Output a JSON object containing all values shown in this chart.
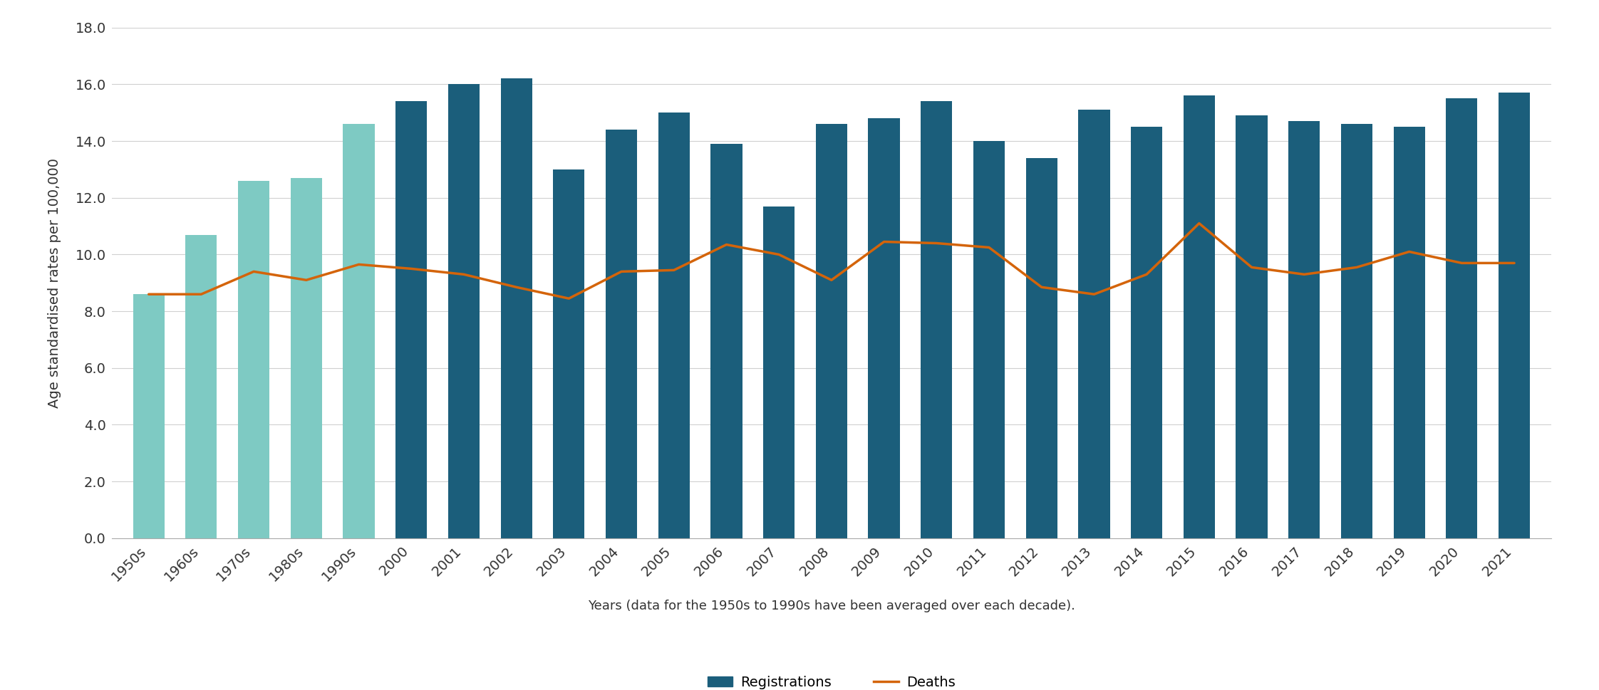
{
  "categories": [
    "1950s",
    "1960s",
    "1970s",
    "1980s",
    "1990s",
    "2000",
    "2001",
    "2002",
    "2003",
    "2004",
    "2005",
    "2006",
    "2007",
    "2008",
    "2009",
    "2010",
    "2011",
    "2012",
    "2013",
    "2014",
    "2015",
    "2016",
    "2017",
    "2018",
    "2019",
    "2020",
    "2021"
  ],
  "registrations": [
    8.6,
    10.7,
    12.6,
    12.7,
    14.6,
    15.4,
    16.0,
    16.2,
    13.0,
    14.4,
    15.0,
    13.9,
    11.7,
    14.6,
    14.8,
    15.4,
    14.0,
    13.4,
    15.1,
    14.5,
    15.6,
    14.9,
    14.7,
    14.6,
    14.5,
    15.5,
    15.7
  ],
  "deaths": [
    8.6,
    8.6,
    9.4,
    9.1,
    9.65,
    9.5,
    9.3,
    8.85,
    8.45,
    9.4,
    9.45,
    10.35,
    10.0,
    9.1,
    10.45,
    10.4,
    10.25,
    8.85,
    8.6,
    9.3,
    11.1,
    9.55,
    9.3,
    9.55,
    10.1,
    9.7,
    9.7
  ],
  "decade_indices": [
    0,
    1,
    2,
    3,
    4
  ],
  "bar_color_decade": "#7ecac3",
  "bar_color_year": "#1b5e7b",
  "line_color": "#d4640a",
  "ylabel": "Age standardised rates per 100,000",
  "xlabel": "Years (data for the 1950s to 1990s have been averaged over each decade).",
  "ylim": [
    0,
    18.0
  ],
  "yticks": [
    0.0,
    2.0,
    4.0,
    6.0,
    8.0,
    10.0,
    12.0,
    14.0,
    16.0,
    18.0
  ],
  "legend_registrations": "Registrations",
  "legend_deaths": "Deaths",
  "background_color": "#ffffff",
  "grid_color": "#d0d0d0"
}
